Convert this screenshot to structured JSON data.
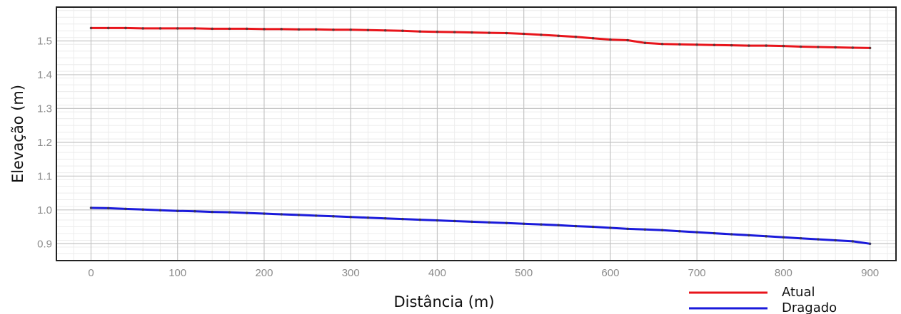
{
  "chart_data": {
    "type": "line",
    "title": "",
    "xlabel": "Distância (m)",
    "ylabel": "Elevação (m)",
    "xlim": [
      -40,
      930
    ],
    "ylim": [
      0.85,
      1.6
    ],
    "x_ticks": [
      0,
      100,
      200,
      300,
      400,
      500,
      600,
      700,
      800,
      900
    ],
    "x_tick_labels": [
      "0",
      "100",
      "200",
      "300",
      "400",
      "500",
      "600",
      "700",
      "800",
      "900"
    ],
    "y_ticks": [
      0.9,
      1.0,
      1.1,
      1.2,
      1.3,
      1.4,
      1.5
    ],
    "y_tick_labels": [
      "0.9",
      "1.0",
      "1.1",
      "1.2",
      "1.3",
      "1.4",
      "1.5"
    ],
    "grid": true,
    "legend_position": "bottom-right",
    "x": [
      0,
      20,
      40,
      60,
      80,
      100,
      120,
      140,
      160,
      180,
      200,
      220,
      240,
      260,
      280,
      300,
      320,
      340,
      360,
      380,
      400,
      420,
      440,
      460,
      480,
      500,
      520,
      540,
      560,
      580,
      600,
      620,
      640,
      660,
      680,
      700,
      720,
      740,
      760,
      780,
      800,
      820,
      840,
      860,
      880,
      900
    ],
    "series": [
      {
        "name": "Atual",
        "color": "#e8141b",
        "values": [
          1.538,
          1.538,
          1.538,
          1.537,
          1.537,
          1.537,
          1.537,
          1.536,
          1.536,
          1.536,
          1.535,
          1.535,
          1.534,
          1.534,
          1.533,
          1.533,
          1.532,
          1.531,
          1.53,
          1.528,
          1.527,
          1.526,
          1.525,
          1.524,
          1.523,
          1.521,
          1.518,
          1.515,
          1.512,
          1.508,
          1.504,
          1.502,
          1.494,
          1.491,
          1.49,
          1.489,
          1.488,
          1.487,
          1.486,
          1.486,
          1.485,
          1.483,
          1.482,
          1.481,
          1.48,
          1.479
        ]
      },
      {
        "name": "Dragado",
        "color": "#1a1adb",
        "values": [
          1.006,
          1.005,
          1.003,
          1.001,
          0.999,
          0.997,
          0.996,
          0.994,
          0.993,
          0.991,
          0.989,
          0.987,
          0.985,
          0.983,
          0.981,
          0.979,
          0.977,
          0.975,
          0.973,
          0.971,
          0.969,
          0.967,
          0.965,
          0.963,
          0.961,
          0.959,
          0.957,
          0.955,
          0.952,
          0.95,
          0.947,
          0.944,
          0.942,
          0.94,
          0.937,
          0.934,
          0.931,
          0.928,
          0.925,
          0.922,
          0.919,
          0.916,
          0.913,
          0.91,
          0.907,
          0.9
        ]
      }
    ]
  }
}
